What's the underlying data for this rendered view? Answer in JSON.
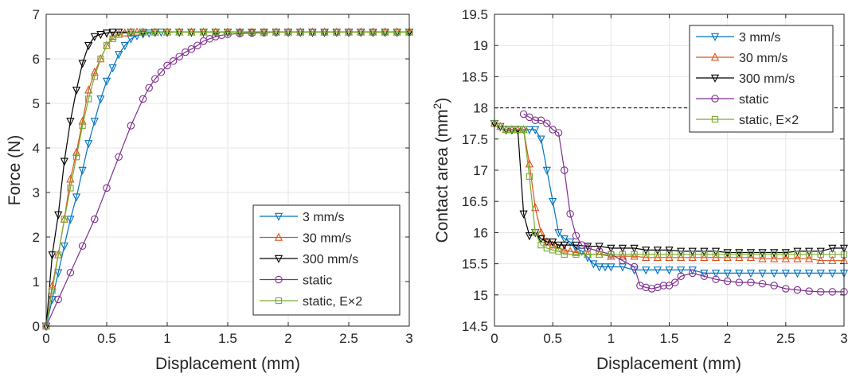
{
  "chart_data": [
    {
      "type": "line",
      "xlabel": "Displacement (mm)",
      "ylabel": "Force (N)",
      "xlim": [
        0,
        3
      ],
      "ylim": [
        0,
        7
      ],
      "xticks": [
        0,
        0.5,
        1,
        1.5,
        2,
        2.5,
        3
      ],
      "xtick_labels": [
        "0",
        "0.5",
        "1",
        "1.5",
        "2",
        "2.5",
        "3"
      ],
      "yticks": [
        0,
        1,
        2,
        3,
        4,
        5,
        6,
        7
      ],
      "ytick_labels": [
        "0",
        "1",
        "2",
        "3",
        "4",
        "5",
        "6",
        "7"
      ],
      "grid": true,
      "legend_position": "bottom-right",
      "series": [
        {
          "name": "3 mm/s",
          "color": "#0072bd",
          "marker": "triangle-down",
          "x": [
            0,
            0.05,
            0.1,
            0.15,
            0.2,
            0.25,
            0.3,
            0.35,
            0.4,
            0.45,
            0.5,
            0.55,
            0.6,
            0.65,
            0.7,
            0.75,
            0.8,
            0.85,
            0.9,
            0.95,
            1.0,
            1.1,
            1.2,
            1.3,
            1.4,
            1.5,
            1.6,
            1.7,
            1.8,
            1.9,
            2.0,
            2.1,
            2.2,
            2.3,
            2.4,
            2.5,
            2.6,
            2.7,
            2.8,
            2.9,
            3.0
          ],
          "y": [
            0,
            0.6,
            1.2,
            1.8,
            2.4,
            2.9,
            3.5,
            4.1,
            4.6,
            5.1,
            5.5,
            5.8,
            6.1,
            6.3,
            6.45,
            6.52,
            6.56,
            6.58,
            6.6,
            6.6,
            6.6,
            6.6,
            6.6,
            6.6,
            6.6,
            6.6,
            6.6,
            6.6,
            6.6,
            6.6,
            6.6,
            6.6,
            6.6,
            6.6,
            6.6,
            6.6,
            6.6,
            6.6,
            6.6,
            6.6,
            6.6
          ]
        },
        {
          "name": "30 mm/s",
          "color": "#d95319",
          "marker": "triangle-up",
          "x": [
            0,
            0.05,
            0.1,
            0.15,
            0.2,
            0.25,
            0.3,
            0.35,
            0.4,
            0.45,
            0.5,
            0.55,
            0.6,
            0.65,
            0.7,
            0.75,
            0.8,
            0.9,
            1.0,
            1.1,
            1.2,
            1.3,
            1.4,
            1.5,
            1.6,
            1.7,
            1.8,
            1.9,
            2.0,
            2.1,
            2.2,
            2.3,
            2.4,
            2.5,
            2.6,
            2.7,
            2.8,
            2.9,
            3.0
          ],
          "y": [
            0,
            0.9,
            1.6,
            2.4,
            3.3,
            3.9,
            4.6,
            5.3,
            5.7,
            6.0,
            6.3,
            6.5,
            6.55,
            6.58,
            6.6,
            6.6,
            6.6,
            6.6,
            6.6,
            6.6,
            6.6,
            6.6,
            6.6,
            6.6,
            6.6,
            6.6,
            6.6,
            6.6,
            6.6,
            6.6,
            6.6,
            6.6,
            6.6,
            6.6,
            6.6,
            6.6,
            6.6,
            6.6,
            6.6
          ]
        },
        {
          "name": "300 mm/s",
          "color": "#000000",
          "marker": "triangle-down",
          "x": [
            0,
            0.05,
            0.1,
            0.15,
            0.2,
            0.25,
            0.3,
            0.35,
            0.4,
            0.45,
            0.5,
            0.55,
            0.6,
            0.7,
            0.8,
            0.9,
            1.0,
            1.1,
            1.2,
            1.3,
            1.4,
            1.5,
            1.6,
            1.7,
            1.8,
            1.9,
            2.0,
            2.1,
            2.2,
            2.3,
            2.4,
            2.5,
            2.6,
            2.7,
            2.8,
            2.9,
            3.0
          ],
          "y": [
            0,
            1.6,
            2.5,
            3.7,
            4.6,
            5.3,
            5.9,
            6.3,
            6.5,
            6.55,
            6.58,
            6.6,
            6.6,
            6.6,
            6.6,
            6.6,
            6.6,
            6.6,
            6.6,
            6.6,
            6.6,
            6.6,
            6.6,
            6.6,
            6.6,
            6.6,
            6.6,
            6.6,
            6.6,
            6.6,
            6.6,
            6.6,
            6.6,
            6.6,
            6.6,
            6.6,
            6.6
          ]
        },
        {
          "name": "static",
          "color": "#7e2f8e",
          "marker": "circle",
          "x": [
            0,
            0.1,
            0.2,
            0.3,
            0.4,
            0.5,
            0.6,
            0.7,
            0.8,
            0.85,
            0.9,
            0.95,
            1.0,
            1.05,
            1.1,
            1.15,
            1.2,
            1.25,
            1.3,
            1.35,
            1.4,
            1.45,
            1.5,
            1.6,
            1.7,
            1.8,
            1.9,
            2.0,
            2.1,
            2.2,
            2.3,
            2.4,
            2.5,
            2.6,
            2.7,
            2.8,
            2.9,
            3.0
          ],
          "y": [
            0,
            0.6,
            1.2,
            1.8,
            2.4,
            3.1,
            3.8,
            4.5,
            5.1,
            5.35,
            5.55,
            5.7,
            5.85,
            5.95,
            6.05,
            6.15,
            6.22,
            6.3,
            6.4,
            6.45,
            6.5,
            6.53,
            6.55,
            6.57,
            6.58,
            6.59,
            6.6,
            6.6,
            6.6,
            6.6,
            6.6,
            6.6,
            6.6,
            6.6,
            6.6,
            6.6,
            6.6,
            6.6
          ]
        },
        {
          "name": "static, E×2",
          "color": "#77ac30",
          "marker": "square",
          "x": [
            0,
            0.05,
            0.1,
            0.15,
            0.2,
            0.25,
            0.3,
            0.35,
            0.4,
            0.45,
            0.5,
            0.55,
            0.6,
            0.7,
            0.8,
            0.9,
            1.0,
            1.1,
            1.2,
            1.3,
            1.4,
            1.5,
            1.6,
            1.7,
            1.8,
            1.9,
            2.0,
            2.1,
            2.2,
            2.3,
            2.4,
            2.5,
            2.6,
            2.7,
            2.8,
            2.9,
            3.0
          ],
          "y": [
            0,
            0.8,
            1.6,
            2.4,
            3.1,
            3.8,
            4.5,
            5.1,
            5.6,
            6.0,
            6.3,
            6.45,
            6.55,
            6.6,
            6.6,
            6.6,
            6.6,
            6.6,
            6.6,
            6.6,
            6.6,
            6.6,
            6.6,
            6.6,
            6.6,
            6.6,
            6.6,
            6.6,
            6.6,
            6.6,
            6.6,
            6.6,
            6.6,
            6.6,
            6.6,
            6.6,
            6.6
          ]
        }
      ]
    },
    {
      "type": "line",
      "xlabel": "Displacement (mm)",
      "ylabel": "Contact area (mm",
      "ylabel_superscript": "2",
      "ylabel_suffix": ")",
      "xlim": [
        0,
        3
      ],
      "ylim": [
        14.5,
        19.5
      ],
      "xticks": [
        0,
        0.5,
        1,
        1.5,
        2,
        2.5,
        3
      ],
      "xtick_labels": [
        "0",
        "0.5",
        "1",
        "1.5",
        "2",
        "2.5",
        "3"
      ],
      "yticks": [
        14.5,
        15,
        15.5,
        16,
        16.5,
        17,
        17.5,
        18,
        18.5,
        19,
        19.5
      ],
      "ytick_labels": [
        "14.5",
        "15",
        "15.5",
        "16",
        "16.5",
        "17",
        "17.5",
        "18",
        "18.5",
        "19",
        "19.5"
      ],
      "grid": true,
      "legend_position": "top-right",
      "reference_line": {
        "y": 18,
        "style": "dashed",
        "color": "#000000"
      },
      "series": [
        {
          "name": "3 mm/s",
          "color": "#0072bd",
          "marker": "triangle-down",
          "x": [
            0,
            0.05,
            0.1,
            0.15,
            0.2,
            0.25,
            0.3,
            0.35,
            0.4,
            0.45,
            0.5,
            0.55,
            0.6,
            0.65,
            0.7,
            0.75,
            0.8,
            0.85,
            0.9,
            0.95,
            1.0,
            1.1,
            1.2,
            1.3,
            1.4,
            1.5,
            1.6,
            1.7,
            1.8,
            1.9,
            2.0,
            2.1,
            2.2,
            2.3,
            2.4,
            2.5,
            2.6,
            2.7,
            2.8,
            2.9,
            3.0
          ],
          "y": [
            17.75,
            17.7,
            17.65,
            17.65,
            17.65,
            17.65,
            17.65,
            17.65,
            17.5,
            17.0,
            16.5,
            16.0,
            15.9,
            15.85,
            15.75,
            15.7,
            15.6,
            15.5,
            15.45,
            15.45,
            15.45,
            15.45,
            15.4,
            15.4,
            15.4,
            15.4,
            15.4,
            15.4,
            15.35,
            15.35,
            15.35,
            15.35,
            15.35,
            15.35,
            15.35,
            15.35,
            15.35,
            15.35,
            15.35,
            15.35,
            15.35
          ]
        },
        {
          "name": "30 mm/s",
          "color": "#d95319",
          "marker": "triangle-up",
          "x": [
            0,
            0.05,
            0.1,
            0.15,
            0.2,
            0.25,
            0.3,
            0.35,
            0.4,
            0.45,
            0.5,
            0.55,
            0.6,
            0.65,
            0.7,
            0.8,
            0.9,
            1.0,
            1.1,
            1.2,
            1.3,
            1.4,
            1.5,
            1.6,
            1.7,
            1.8,
            1.9,
            2.0,
            2.1,
            2.2,
            2.3,
            2.4,
            2.5,
            2.6,
            2.7,
            2.8,
            2.9,
            3.0
          ],
          "y": [
            17.75,
            17.7,
            17.65,
            17.65,
            17.65,
            17.65,
            17.1,
            16.4,
            16.0,
            15.85,
            15.8,
            15.75,
            15.72,
            15.7,
            15.68,
            15.65,
            15.65,
            15.62,
            15.62,
            15.62,
            15.6,
            15.6,
            15.6,
            15.6,
            15.6,
            15.6,
            15.6,
            15.6,
            15.6,
            15.6,
            15.58,
            15.58,
            15.58,
            15.58,
            15.58,
            15.55,
            15.55,
            15.55
          ]
        },
        {
          "name": "300 mm/s",
          "color": "#000000",
          "marker": "triangle-down",
          "x": [
            0,
            0.05,
            0.1,
            0.15,
            0.2,
            0.25,
            0.3,
            0.35,
            0.4,
            0.45,
            0.5,
            0.55,
            0.6,
            0.7,
            0.8,
            0.9,
            1.0,
            1.1,
            1.2,
            1.3,
            1.4,
            1.5,
            1.6,
            1.7,
            1.8,
            1.9,
            2.0,
            2.1,
            2.2,
            2.3,
            2.4,
            2.5,
            2.6,
            2.7,
            2.8,
            2.9,
            3.0
          ],
          "y": [
            17.75,
            17.7,
            17.65,
            17.65,
            17.65,
            16.3,
            15.95,
            16.0,
            15.9,
            15.85,
            15.85,
            15.8,
            15.8,
            15.8,
            15.78,
            15.78,
            15.75,
            15.75,
            15.75,
            15.72,
            15.72,
            15.72,
            15.7,
            15.7,
            15.7,
            15.7,
            15.68,
            15.68,
            15.68,
            15.68,
            15.68,
            15.68,
            15.7,
            15.7,
            15.7,
            15.75,
            15.75
          ]
        },
        {
          "name": "static",
          "color": "#7e2f8e",
          "marker": "circle",
          "x": [
            0.25,
            0.3,
            0.35,
            0.4,
            0.45,
            0.5,
            0.55,
            0.6,
            0.65,
            0.7,
            0.75,
            0.8,
            0.9,
            1.0,
            1.1,
            1.2,
            1.25,
            1.3,
            1.35,
            1.4,
            1.45,
            1.5,
            1.55,
            1.6,
            1.7,
            1.8,
            1.9,
            2.0,
            2.1,
            2.2,
            2.3,
            2.4,
            2.5,
            2.6,
            2.7,
            2.8,
            2.9,
            3.0
          ],
          "y": [
            17.9,
            17.85,
            17.8,
            17.8,
            17.75,
            17.65,
            17.6,
            17.0,
            16.3,
            15.95,
            15.8,
            15.75,
            15.7,
            15.65,
            15.55,
            15.45,
            15.15,
            15.12,
            15.1,
            15.12,
            15.15,
            15.15,
            15.2,
            15.3,
            15.35,
            15.3,
            15.25,
            15.22,
            15.2,
            15.2,
            15.18,
            15.15,
            15.1,
            15.08,
            15.06,
            15.05,
            15.05,
            15.05
          ]
        },
        {
          "name": "static, E×2",
          "color": "#77ac30",
          "marker": "square",
          "x": [
            0,
            0.05,
            0.1,
            0.15,
            0.2,
            0.25,
            0.3,
            0.35,
            0.4,
            0.45,
            0.5,
            0.55,
            0.6,
            0.7,
            0.8,
            0.9,
            1.0,
            1.1,
            1.2,
            1.3,
            1.4,
            1.5,
            1.6,
            1.7,
            1.8,
            1.9,
            2.0,
            2.1,
            2.2,
            2.3,
            2.4,
            2.5,
            2.6,
            2.7,
            2.8,
            2.9,
            3.0
          ],
          "y": [
            17.75,
            17.7,
            17.65,
            17.65,
            17.65,
            17.65,
            16.9,
            16.0,
            15.8,
            15.75,
            15.72,
            15.7,
            15.65,
            15.65,
            15.65,
            15.65,
            15.65,
            15.65,
            15.65,
            15.65,
            15.65,
            15.65,
            15.65,
            15.65,
            15.65,
            15.65,
            15.65,
            15.65,
            15.65,
            15.65,
            15.65,
            15.65,
            15.65,
            15.65,
            15.65,
            15.65,
            15.65
          ]
        }
      ]
    }
  ]
}
